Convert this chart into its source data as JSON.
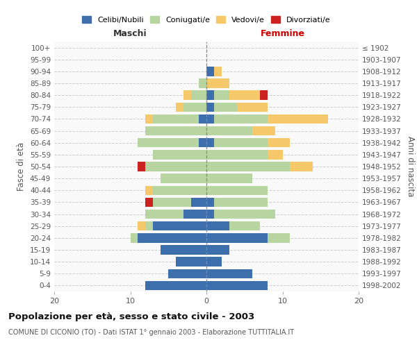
{
  "age_groups": [
    "0-4",
    "5-9",
    "10-14",
    "15-19",
    "20-24",
    "25-29",
    "30-34",
    "35-39",
    "40-44",
    "45-49",
    "50-54",
    "55-59",
    "60-64",
    "65-69",
    "70-74",
    "75-79",
    "80-84",
    "85-89",
    "90-94",
    "95-99",
    "100+"
  ],
  "birth_years": [
    "1998-2002",
    "1993-1997",
    "1988-1992",
    "1983-1987",
    "1978-1982",
    "1973-1977",
    "1968-1972",
    "1963-1967",
    "1958-1962",
    "1953-1957",
    "1948-1952",
    "1943-1947",
    "1938-1942",
    "1933-1937",
    "1928-1932",
    "1923-1927",
    "1918-1922",
    "1913-1917",
    "1908-1912",
    "1903-1907",
    "≤ 1902"
  ],
  "maschi": {
    "celibi": [
      8,
      5,
      4,
      6,
      9,
      7,
      3,
      2,
      0,
      0,
      0,
      0,
      1,
      0,
      1,
      0,
      0,
      0,
      0,
      0,
      0
    ],
    "coniugati": [
      0,
      0,
      0,
      0,
      1,
      1,
      5,
      5,
      7,
      6,
      8,
      7,
      8,
      8,
      6,
      3,
      2,
      1,
      0,
      0,
      0
    ],
    "vedovi": [
      0,
      0,
      0,
      0,
      0,
      1,
      0,
      0,
      1,
      0,
      0,
      0,
      0,
      0,
      1,
      1,
      1,
      0,
      0,
      0,
      0
    ],
    "divorziati": [
      0,
      0,
      0,
      0,
      0,
      0,
      0,
      1,
      0,
      0,
      1,
      0,
      0,
      0,
      0,
      0,
      0,
      0,
      0,
      0,
      0
    ]
  },
  "femmine": {
    "celibi": [
      8,
      6,
      2,
      3,
      8,
      3,
      1,
      1,
      0,
      0,
      0,
      0,
      1,
      0,
      1,
      1,
      1,
      0,
      1,
      0,
      0
    ],
    "coniugati": [
      0,
      0,
      0,
      0,
      3,
      4,
      8,
      7,
      8,
      6,
      11,
      8,
      7,
      6,
      7,
      3,
      2,
      0,
      0,
      0,
      0
    ],
    "vedovi": [
      0,
      0,
      0,
      0,
      0,
      0,
      0,
      0,
      0,
      0,
      3,
      2,
      3,
      3,
      8,
      4,
      4,
      3,
      1,
      0,
      0
    ],
    "divorziati": [
      0,
      0,
      0,
      0,
      0,
      0,
      0,
      0,
      0,
      0,
      0,
      0,
      0,
      0,
      0,
      0,
      1,
      0,
      0,
      0,
      0
    ]
  },
  "colors": {
    "celibi": "#3d6fad",
    "coniugati": "#b8d4a0",
    "vedovi": "#f5c96a",
    "divorziati": "#cc2222"
  },
  "xlim": 20,
  "title": "Popolazione per età, sesso e stato civile - 2003",
  "subtitle": "COMUNE DI CICONIO (TO) - Dati ISTAT 1° gennaio 2003 - Elaborazione TUTTITALIA.IT",
  "ylabel_left": "Fasce di età",
  "ylabel_right": "Anni di nascita",
  "xlabel_maschi": "Maschi",
  "xlabel_femmine": "Femmine",
  "legend_labels": [
    "Celibi/Nubili",
    "Coniugati/e",
    "Vedovi/e",
    "Divorziati/e"
  ],
  "bg_color": "#ffffff",
  "grid_color": "#cccccc"
}
